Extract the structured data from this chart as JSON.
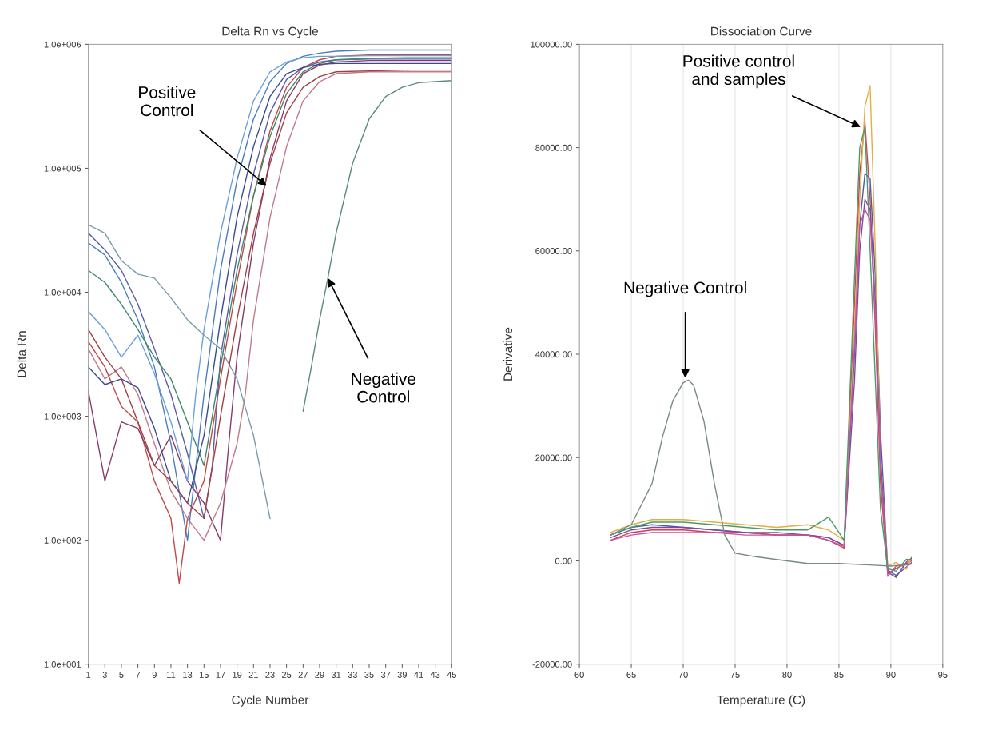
{
  "chart_data": [
    {
      "type": "line",
      "title": "Delta Rn vs Cycle",
      "xlabel": "Cycle Number",
      "ylabel": "Delta Rn",
      "log": "y",
      "grid": false,
      "xlim": [
        1,
        45
      ],
      "xticks": [
        1,
        3,
        5,
        7,
        9,
        11,
        13,
        15,
        17,
        19,
        21,
        23,
        25,
        27,
        29,
        31,
        33,
        35,
        37,
        39,
        41,
        43,
        45
      ],
      "ylim": [
        10,
        1000000
      ],
      "yticks": [
        {
          "value": 10,
          "label": "1.0e+001"
        },
        {
          "value": 100,
          "label": "1.0e+002"
        },
        {
          "value": 1000,
          "label": "1.0e+003"
        },
        {
          "value": 10000,
          "label": "1.0e+004"
        },
        {
          "value": 100000,
          "label": "1.0e+005"
        },
        {
          "value": 1000000,
          "label": "1.0e+006"
        }
      ],
      "annotations": [
        {
          "text": "Positive\nControl",
          "x": 22.6,
          "y": 72000
        },
        {
          "text": "Negative\nControl",
          "x": 30,
          "y": 13000
        }
      ],
      "series": [
        {
          "color": "#4a7cc0",
          "x": [
            1,
            3,
            5,
            7,
            9,
            11,
            13,
            15,
            17,
            19,
            21,
            23,
            25,
            27,
            29,
            31,
            35,
            40,
            45
          ],
          "values": [
            25000,
            20000,
            12000,
            6000,
            2500,
            600,
            100,
            1500,
            15000,
            80000,
            250000,
            500000,
            700000,
            800000,
            850000,
            880000,
            900000,
            900000,
            900000
          ]
        },
        {
          "color": "#c04a4a",
          "x": [
            1,
            3,
            5,
            7,
            9,
            11,
            12,
            13,
            15,
            17,
            19,
            21,
            23,
            25,
            27,
            29,
            31,
            35,
            40,
            45
          ],
          "values": [
            4000,
            2500,
            1200,
            900,
            300,
            150,
            45,
            150,
            300,
            2000,
            12000,
            60000,
            200000,
            450000,
            650000,
            750000,
            800000,
            820000,
            820000,
            820000
          ]
        },
        {
          "color": "#5b5ba8",
          "x": [
            1,
            3,
            5,
            7,
            9,
            11,
            13,
            15,
            16,
            17,
            19,
            21,
            23,
            25,
            27,
            29,
            31,
            35,
            40,
            45
          ],
          "values": [
            30000,
            22000,
            15000,
            8000,
            3500,
            1500,
            500,
            150,
            400,
            3000,
            20000,
            90000,
            280000,
            520000,
            650000,
            720000,
            750000,
            760000,
            760000,
            760000
          ]
        },
        {
          "color": "#8a3a6a",
          "x": [
            1,
            3,
            5,
            7,
            9,
            11,
            13,
            15,
            17,
            18,
            19,
            21,
            23,
            25,
            27,
            29,
            31,
            35,
            40,
            45
          ],
          "values": [
            1600,
            300,
            900,
            800,
            400,
            700,
            300,
            200,
            100,
            600,
            3000,
            25000,
            120000,
            350000,
            580000,
            680000,
            720000,
            740000,
            740000,
            740000
          ]
        },
        {
          "color": "#3c8a6a",
          "x": [
            1,
            3,
            5,
            7,
            9,
            11,
            13,
            15,
            17,
            19,
            21,
            23,
            25,
            27,
            29,
            31,
            35,
            40,
            45
          ],
          "values": [
            15000,
            12000,
            8000,
            5000,
            3000,
            2000,
            900,
            400,
            2500,
            15000,
            60000,
            180000,
            400000,
            600000,
            700000,
            750000,
            770000,
            780000,
            780000
          ]
        },
        {
          "color": "#6aa0d8",
          "x": [
            1,
            3,
            5,
            7,
            9,
            11,
            13,
            14,
            15,
            17,
            19,
            21,
            23,
            25,
            27,
            29,
            31,
            35,
            40,
            45
          ],
          "values": [
            7000,
            5000,
            3000,
            4500,
            2200,
            900,
            300,
            1500,
            5000,
            30000,
            120000,
            350000,
            600000,
            720000,
            780000,
            800000,
            800000,
            810000,
            810000,
            810000
          ]
        },
        {
          "color": "#c07a8a",
          "x": [
            1,
            3,
            5,
            7,
            9,
            11,
            13,
            15,
            17,
            19,
            20,
            21,
            23,
            25,
            27,
            29,
            31,
            35,
            40,
            45
          ],
          "values": [
            3500,
            2000,
            2500,
            1500,
            600,
            250,
            150,
            100,
            200,
            600,
            1500,
            6000,
            40000,
            150000,
            350000,
            500000,
            580000,
            600000,
            600000,
            600000
          ]
        },
        {
          "color": "#3a4a90",
          "x": [
            1,
            3,
            5,
            7,
            9,
            11,
            13,
            15,
            17,
            19,
            21,
            23,
            25,
            27,
            29,
            31,
            35,
            40,
            45
          ],
          "values": [
            2500,
            1800,
            2000,
            1700,
            800,
            300,
            200,
            700,
            6000,
            40000,
            150000,
            380000,
            580000,
            650000,
            690000,
            700000,
            700000,
            700000,
            700000
          ]
        },
        {
          "color": "#7a9aaa",
          "x": [
            1,
            3,
            5,
            7,
            9,
            11,
            13,
            15,
            17,
            19,
            21,
            23
          ],
          "values": [
            35000,
            30000,
            18000,
            14000,
            13000,
            9000,
            6000,
            4500,
            3500,
            2000,
            700,
            150
          ]
        },
        {
          "color": "#a04040",
          "x": [
            1,
            3,
            5,
            7,
            9,
            11,
            13,
            15,
            17,
            19,
            21,
            23,
            25,
            27,
            29,
            31,
            35,
            40,
            45
          ],
          "values": [
            5000,
            3000,
            2000,
            900,
            400,
            300,
            200,
            150,
            1000,
            6000,
            30000,
            110000,
            280000,
            450000,
            550000,
            600000,
            610000,
            620000,
            620000
          ]
        },
        {
          "color": "#5a8a7a",
          "x": [
            27,
            28,
            29,
            30,
            31,
            33,
            35,
            37,
            39,
            41,
            43,
            45
          ],
          "values": [
            1100,
            2500,
            6000,
            13000,
            30000,
            110000,
            250000,
            380000,
            450000,
            490000,
            500000,
            510000
          ]
        }
      ]
    },
    {
      "type": "line",
      "title": "Dissociation Curve",
      "xlabel": "Temperature (C)",
      "ylabel": "Derivative",
      "grid": "x",
      "xlim": [
        60,
        95
      ],
      "xticks": [
        60,
        65,
        70,
        75,
        80,
        85,
        90,
        95
      ],
      "ylim": [
        -20000,
        100000
      ],
      "yticks": [
        {
          "value": -20000,
          "label": "-20000.00"
        },
        {
          "value": 0,
          "label": "0.00"
        },
        {
          "value": 20000,
          "label": "20000.00"
        },
        {
          "value": 40000,
          "label": "40000.00"
        },
        {
          "value": 60000,
          "label": "60000.00"
        },
        {
          "value": 80000,
          "label": "80000.00"
        },
        {
          "value": 100000,
          "label": "100000.00"
        }
      ],
      "annotations": [
        {
          "text": "Positive control\nand samples",
          "x": 87.1,
          "y": 84000
        },
        {
          "text": "Negative Control",
          "x": 70.2,
          "y": 35400
        }
      ],
      "series": [
        {
          "color": "#4a5ab0",
          "x": [
            63,
            65,
            67,
            70,
            73,
            76,
            79,
            82,
            84,
            85.5,
            86.5,
            87,
            87.5,
            88,
            88.5,
            89,
            89.7,
            90.5,
            91.5,
            92
          ],
          "values": [
            5000,
            6500,
            7000,
            6500,
            6000,
            5500,
            5000,
            5000,
            4500,
            3000,
            40000,
            65000,
            75000,
            74000,
            55000,
            25000,
            -1800,
            -2800,
            -1200,
            -300
          ]
        },
        {
          "color": "#d04050",
          "x": [
            63,
            65,
            67,
            70,
            73,
            76,
            79,
            82,
            84,
            85.5,
            86.5,
            87,
            87.5,
            88,
            88.5,
            89,
            89.7,
            90.5,
            91.5,
            92
          ],
          "values": [
            4000,
            5500,
            6000,
            6000,
            5500,
            5500,
            5000,
            5000,
            4000,
            2500,
            50000,
            75000,
            85000,
            70000,
            45000,
            15000,
            -2500,
            -1500,
            -500,
            0
          ]
        },
        {
          "color": "#e0b040",
          "x": [
            63,
            65,
            67,
            70,
            73,
            76,
            79,
            82,
            84,
            85.5,
            86.5,
            87,
            87.5,
            88,
            88.5,
            89,
            89.7,
            90.5,
            91.5,
            92
          ],
          "values": [
            5500,
            7000,
            8000,
            8000,
            7500,
            7000,
            6500,
            7000,
            6000,
            4000,
            45000,
            70000,
            88000,
            92000,
            60000,
            20000,
            -1000,
            -300,
            -1600,
            800
          ]
        },
        {
          "color": "#7a4aa0",
          "x": [
            63,
            65,
            67,
            70,
            73,
            76,
            79,
            82,
            84,
            85.5,
            86.5,
            87,
            87.5,
            88,
            88.5,
            89,
            89.7,
            90.5,
            91.5,
            92
          ],
          "values": [
            4500,
            6000,
            6500,
            6500,
            6000,
            5500,
            5500,
            5000,
            4500,
            3000,
            35000,
            60000,
            70000,
            68000,
            50000,
            20000,
            -2200,
            -3200,
            -200,
            500
          ]
        },
        {
          "color": "#d050a0",
          "x": [
            63,
            65,
            67,
            70,
            73,
            76,
            79,
            82,
            84,
            85.5,
            86.5,
            87,
            87.5,
            88,
            88.5,
            89,
            89.7,
            90.5,
            91.5,
            92
          ],
          "values": [
            4000,
            5000,
            5500,
            5500,
            5500,
            5000,
            5000,
            5000,
            4000,
            2800,
            42000,
            65000,
            68000,
            66000,
            48000,
            18000,
            -3000,
            -1000,
            -800,
            -600
          ]
        },
        {
          "color": "#4a9a6a",
          "x": [
            63,
            65,
            67,
            70,
            73,
            76,
            79,
            82,
            84,
            85.5,
            86.5,
            87,
            87.5,
            88,
            88.5,
            89,
            89.7,
            90.5,
            91.5,
            92
          ],
          "values": [
            5000,
            6500,
            7500,
            7500,
            7000,
            6500,
            6000,
            6000,
            8500,
            4000,
            55000,
            80000,
            84000,
            60000,
            35000,
            10000,
            -1500,
            -2000,
            300,
            200
          ]
        },
        {
          "color": "#7a8a80",
          "x": [
            63,
            65,
            67,
            68,
            69,
            70,
            70.5,
            71,
            72,
            73,
            74,
            75,
            77,
            80,
            82,
            85,
            88,
            90,
            91,
            92
          ],
          "values": [
            5000,
            7000,
            15000,
            24000,
            31000,
            34500,
            35000,
            34000,
            27000,
            15000,
            5000,
            1500,
            800,
            0,
            -500,
            -500,
            -800,
            -1000,
            -800,
            -500
          ]
        }
      ]
    }
  ]
}
